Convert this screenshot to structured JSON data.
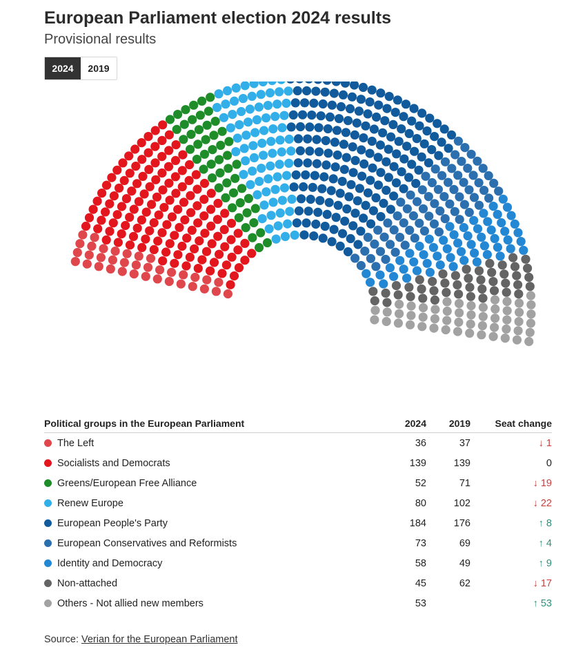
{
  "title": "European Parliament election 2024 results",
  "subtitle": "Provisional results",
  "toggle": {
    "options": [
      "2024",
      "2019"
    ],
    "selected": "2024"
  },
  "table": {
    "header": {
      "group": "Political groups in the European Parliament",
      "y2024": "2024",
      "y2019": "2019",
      "change": "Seat change"
    },
    "rows": [
      {
        "name": "The Left",
        "color": "#e0474c",
        "y2024": "36",
        "y2019": "37",
        "change": "↓ 1",
        "dir": "down"
      },
      {
        "name": "Socialists and Democrats",
        "color": "#e3161d",
        "y2024": "139",
        "y2019": "139",
        "change": "0",
        "dir": "flat"
      },
      {
        "name": "Greens/European Free Alliance",
        "color": "#1e8c28",
        "y2024": "52",
        "y2019": "71",
        "change": "↓ 19",
        "dir": "down"
      },
      {
        "name": "Renew Europe",
        "color": "#32aee8",
        "y2024": "80",
        "y2019": "102",
        "change": "↓ 22",
        "dir": "down"
      },
      {
        "name": "European People's Party",
        "color": "#115a9b",
        "y2024": "184",
        "y2019": "176",
        "change": "↑ 8",
        "dir": "up"
      },
      {
        "name": "European Conservatives and Reformists",
        "color": "#2c6fae",
        "y2024": "73",
        "y2019": "69",
        "change": "↑ 4",
        "dir": "up"
      },
      {
        "name": "Identity and Democracy",
        "color": "#2387d4",
        "y2024": "58",
        "y2019": "49",
        "change": "↑ 9",
        "dir": "up"
      },
      {
        "name": "Non-attached",
        "color": "#646464",
        "y2024": "45",
        "y2019": "62",
        "change": "↓ 17",
        "dir": "down"
      },
      {
        "name": "Others - Not allied new members",
        "color": "#a2a2a2",
        "y2024": "53",
        "y2019": "",
        "change": "↑ 53",
        "dir": "up"
      }
    ]
  },
  "source": {
    "label": "Source: ",
    "link": "Verian for the European Parliament"
  },
  "chart_data": {
    "type": "hemicycle",
    "total_seats": 720,
    "series": [
      {
        "name": "The Left",
        "value": 36,
        "color": "#e0474c"
      },
      {
        "name": "Socialists and Democrats",
        "value": 139,
        "color": "#e3161d"
      },
      {
        "name": "Greens/European Free Alliance",
        "value": 52,
        "color": "#1e8c28"
      },
      {
        "name": "Renew Europe",
        "value": 80,
        "color": "#32aee8"
      },
      {
        "name": "European People's Party",
        "value": 184,
        "color": "#115a9b"
      },
      {
        "name": "European Conservatives and Reformists",
        "value": 73,
        "color": "#2c6fae"
      },
      {
        "name": "Identity and Democracy",
        "value": 58,
        "color": "#2387d4"
      },
      {
        "name": "Non-attached",
        "value": 45,
        "color": "#646464"
      },
      {
        "name": "Others - Not allied new members",
        "value": 53,
        "color": "#a2a2a2"
      }
    ]
  }
}
